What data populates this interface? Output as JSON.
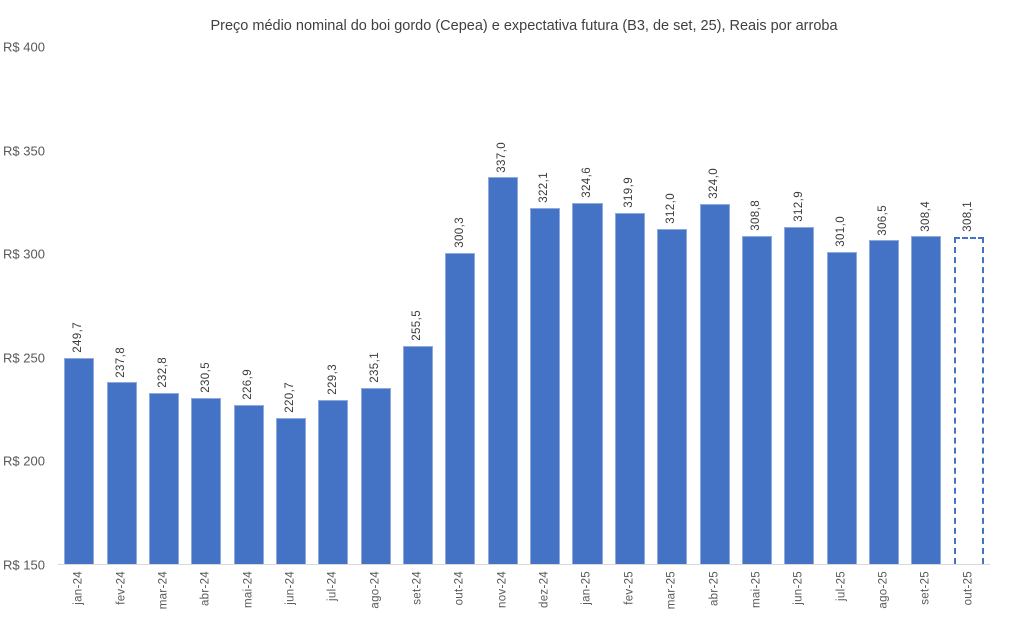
{
  "chart_data": {
    "type": "bar",
    "title": "Preço médio nominal do boi gordo (Cepea) e expectativa futura (B3, de set, 25), Reais por arroba",
    "categories": [
      "jan-24",
      "fev-24",
      "mar-24",
      "abr-24",
      "mai-24",
      "jun-24",
      "jul-24",
      "ago-24",
      "set-24",
      "out-24",
      "nov-24",
      "dez-24",
      "jan-25",
      "fev-25",
      "mar-25",
      "abr-25",
      "mai-25",
      "jun-25",
      "jul-25",
      "ago-25",
      "set-25",
      "out-25"
    ],
    "values": [
      249.7,
      237.8,
      232.8,
      230.5,
      226.9,
      220.7,
      229.3,
      235.1,
      255.5,
      300.3,
      337.0,
      322.1,
      324.6,
      319.9,
      312.0,
      324.0,
      308.8,
      312.9,
      301.0,
      306.5,
      308.4,
      308.1
    ],
    "value_labels": [
      "249,7",
      "237,8",
      "232,8",
      "230,5",
      "226,9",
      "220,7",
      "229,3",
      "235,1",
      "255,5",
      "300,3",
      "337,0",
      "322,1",
      "324,6",
      "319,9",
      "312,0",
      "324,0",
      "308,8",
      "312,9",
      "301,0",
      "306,5",
      "308,4",
      "308,1"
    ],
    "forecast_index": 21,
    "y_ticks": [
      "R$ 400",
      "R$ 350",
      "R$ 300",
      "R$ 250",
      "R$ 200",
      "R$ 150"
    ],
    "ylim": [
      150,
      400
    ],
    "xlabel": "",
    "ylabel": "",
    "grid": false,
    "legend": "none",
    "colors": {
      "bar_fill": "#4472C4",
      "bar_border": "#8faadc",
      "forecast_outline": "#4472C4",
      "axis_line": "#d9d9d9",
      "tick_text": "#595959",
      "value_text": "#3b3b3b",
      "title_text": "#404040"
    }
  }
}
